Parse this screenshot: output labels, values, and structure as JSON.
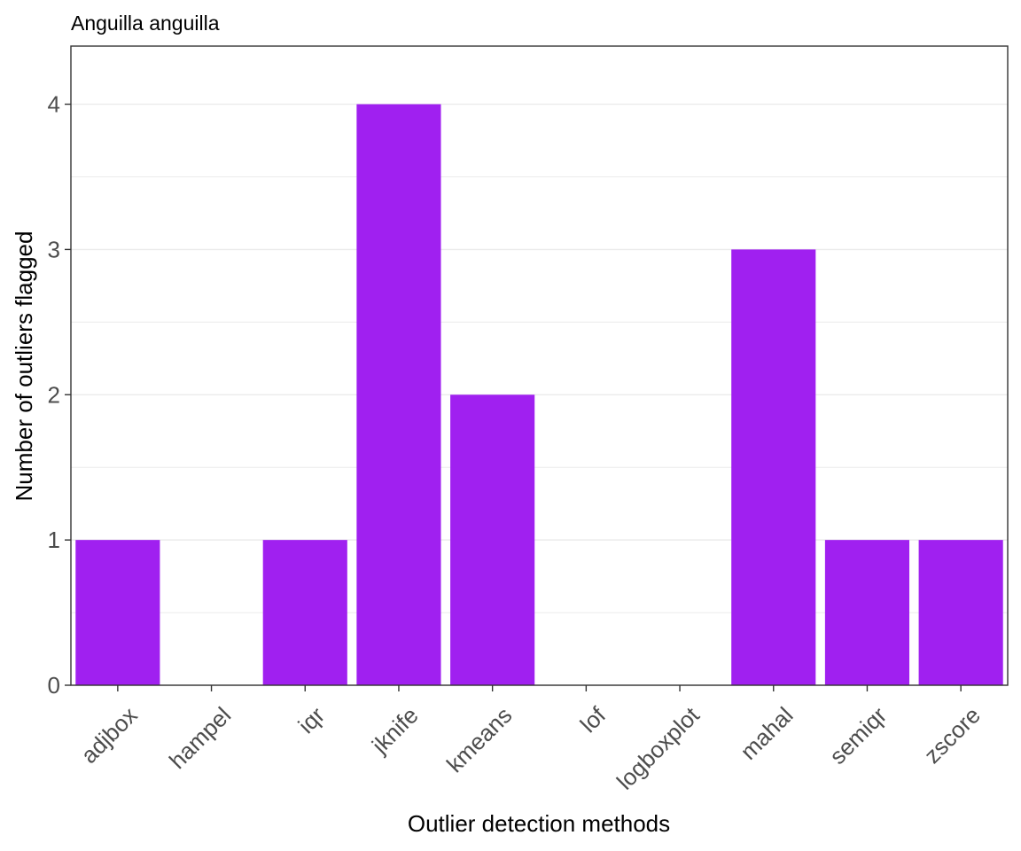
{
  "chart_data": {
    "type": "bar",
    "title": "Anguilla anguilla",
    "xlabel": "Outlier detection methods",
    "ylabel": "Number of outliers flagged",
    "categories": [
      "adjbox",
      "hampel",
      "iqr",
      "jknife",
      "kmeans",
      "lof",
      "logboxplot",
      "mahal",
      "semiqr",
      "zscore"
    ],
    "values": [
      1,
      0,
      1,
      4,
      2,
      0,
      0,
      3,
      1,
      1
    ],
    "ylim": [
      0,
      4.4
    ],
    "yticks": [
      0,
      1,
      2,
      3,
      4
    ],
    "minor_gridlines": [
      0.5,
      1.5,
      2.5,
      3.5
    ],
    "grid": true,
    "bar_color": "#A020F0",
    "grid_color": "#EBEBEB",
    "panel_border_color": "#333333"
  }
}
